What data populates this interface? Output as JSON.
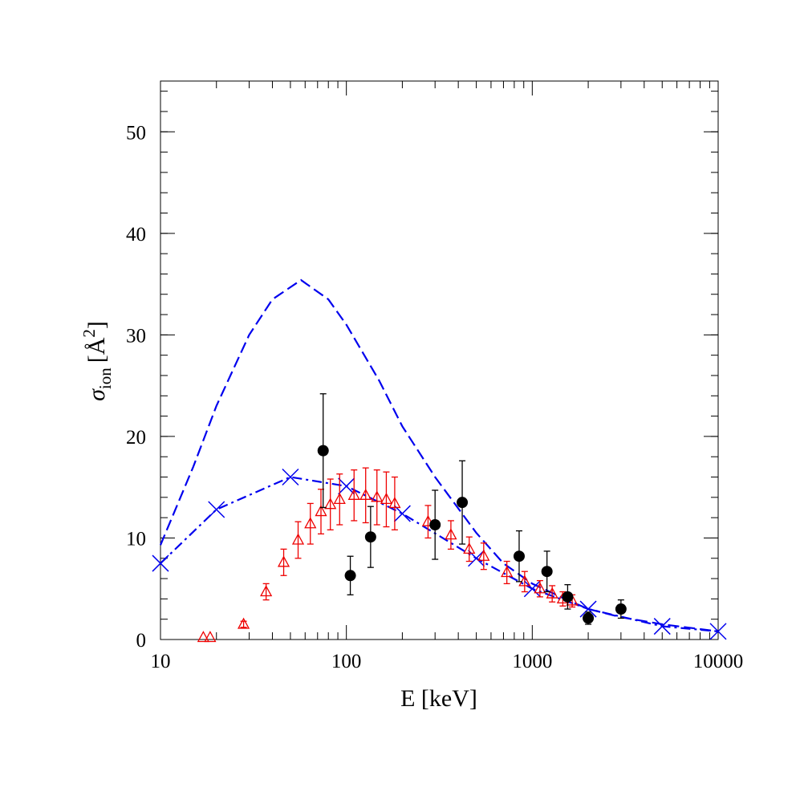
{
  "chart_data": {
    "type": "scatter",
    "x_label": "E [keV]",
    "y_label_parts": [
      "σ",
      "ion",
      "[Å",
      "2",
      "]"
    ],
    "log_x": true,
    "xlim": [
      10,
      10000
    ],
    "xticks": [
      10,
      100,
      1000,
      10000
    ],
    "ylim": [
      0,
      55
    ],
    "yticks": [
      0,
      10,
      20,
      30,
      40,
      50
    ],
    "series": [
      {
        "style": "dashed",
        "color": "#0000ee",
        "x": [
          10,
          15,
          20,
          30,
          40,
          57,
          80,
          100,
          150,
          200,
          300,
          500,
          700,
          1000,
          1500,
          2000,
          3000,
          5000,
          10000
        ],
        "values": [
          9.3,
          17,
          23,
          30,
          33.5,
          35.4,
          33.5,
          31,
          25.5,
          21,
          16,
          10.5,
          7.5,
          5.5,
          4,
          3,
          2.2,
          1.5,
          0.8
        ]
      },
      {
        "style": "dashdot",
        "marker": "x",
        "color": "#0000ee",
        "x": [
          10,
          20,
          50,
          100,
          200,
          500,
          1000,
          2000,
          5000,
          10000
        ],
        "values": [
          7.5,
          12.8,
          16,
          15.1,
          12.4,
          8.0,
          5.0,
          3.0,
          1.3,
          0.8
        ]
      },
      {
        "style": "none",
        "marker": "triangle",
        "color": "#ee0000",
        "x": [
          17,
          18.5,
          28,
          37,
          46,
          55,
          64,
          73,
          82,
          92,
          110,
          127,
          146,
          164,
          182,
          275,
          365,
          458,
          548,
          730,
          910,
          1100,
          1280,
          1460,
          1640
        ],
        "values": [
          0.2,
          0.2,
          1.5,
          4.7,
          7.6,
          9.8,
          11.4,
          12.6,
          13.3,
          13.8,
          14.2,
          14.2,
          14.0,
          13.8,
          13.4,
          11.6,
          10.3,
          8.9,
          8.2,
          6.6,
          5.7,
          5.0,
          4.5,
          4.0,
          3.8
        ],
        "errors": [
          null,
          null,
          0.3,
          0.8,
          1.3,
          1.8,
          2,
          2.2,
          2.5,
          2.5,
          2.5,
          2.7,
          2.7,
          2.7,
          2.6,
          1.6,
          1.4,
          1.2,
          1.3,
          1.1,
          1.0,
          0.8,
          0.8,
          0.7,
          0.6
        ]
      },
      {
        "style": "none",
        "marker": "circle",
        "color": "#000000",
        "x": [
          75,
          105,
          135,
          300,
          420,
          850,
          1200,
          1550,
          2000,
          3000
        ],
        "values": [
          18.6,
          6.3,
          10.1,
          11.3,
          13.5,
          8.2,
          6.7,
          4.2,
          2.1,
          3.0
        ],
        "errors": [
          5.6,
          1.9,
          3,
          3.4,
          4.1,
          2.5,
          2,
          1.2,
          0.6,
          0.9
        ]
      }
    ]
  }
}
